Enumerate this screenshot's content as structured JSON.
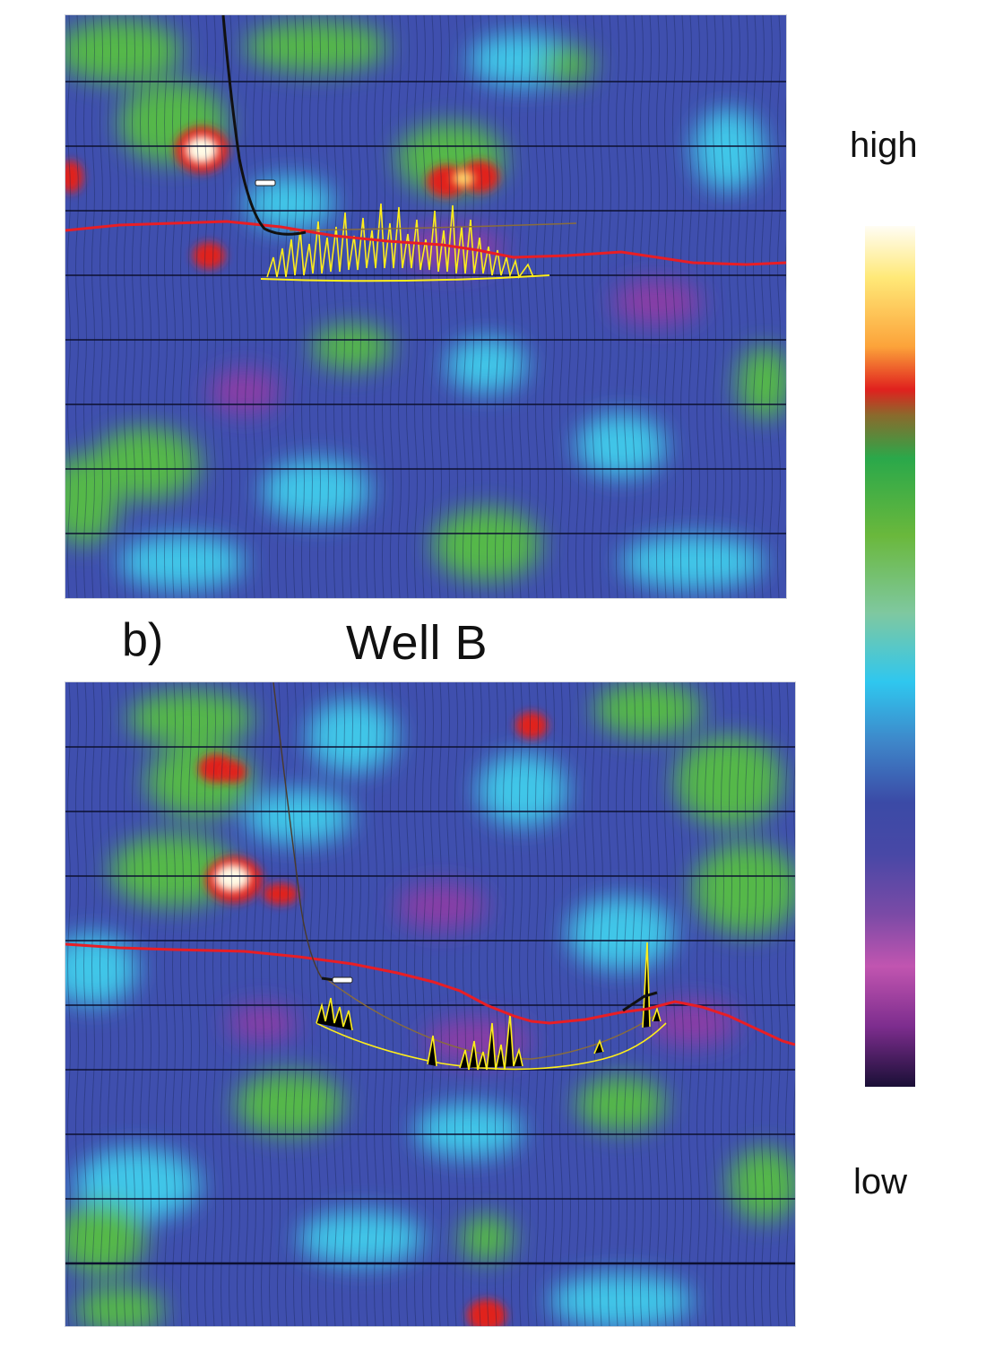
{
  "panel_b": {
    "letter": "b)",
    "title": "Well B"
  },
  "colorbar": {
    "high_label": "high",
    "low_label": "low",
    "colors": [
      "#fffdf4",
      "#ffe978",
      "#fca33a",
      "#e0211e",
      "#8a6a2c",
      "#2aa84a",
      "#6ab83c",
      "#7fc8a0",
      "#2fc7ef",
      "#3e86c9",
      "#3b4aa6",
      "#7b4aa6",
      "#c155b0",
      "#7d2d8e",
      "#1a0f36"
    ]
  },
  "overlay_colors": {
    "horizon": "#e81e25",
    "well_path": "#111111",
    "microseismic_events": "#ffee1a",
    "planned_trajectory": "#8a6d3b"
  }
}
